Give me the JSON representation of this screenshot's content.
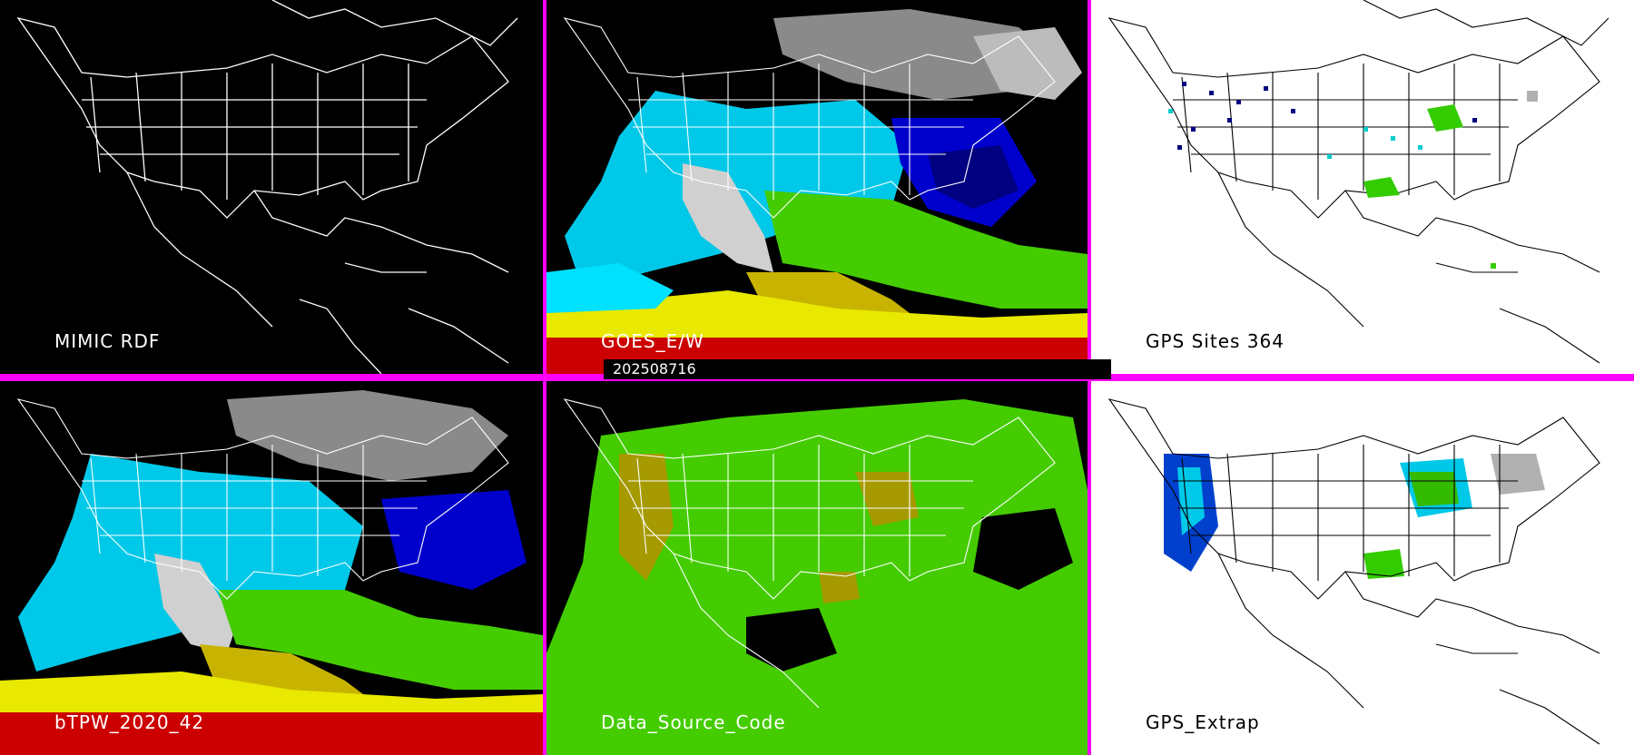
{
  "panels": [
    {
      "id": "mimic-rdf",
      "label": "MIMIC RDF",
      "theme": "dark"
    },
    {
      "id": "goes-e-w",
      "label": "GOES_E/W",
      "theme": "dark"
    },
    {
      "id": "gps-sites",
      "label": "GPS Sites    364",
      "theme": "light"
    },
    {
      "id": "btpw",
      "label": "bTPW_2020_42",
      "theme": "dark"
    },
    {
      "id": "data-source-code",
      "label": "Data_Source_Code",
      "theme": "dark"
    },
    {
      "id": "gps-extrap",
      "label": "GPS_Extrap",
      "theme": "light"
    }
  ],
  "timestamp": "202508716",
  "colors": {
    "divider": "#ff00ff",
    "ocean_dark": "#000000",
    "ocean_light": "#ffffff"
  }
}
